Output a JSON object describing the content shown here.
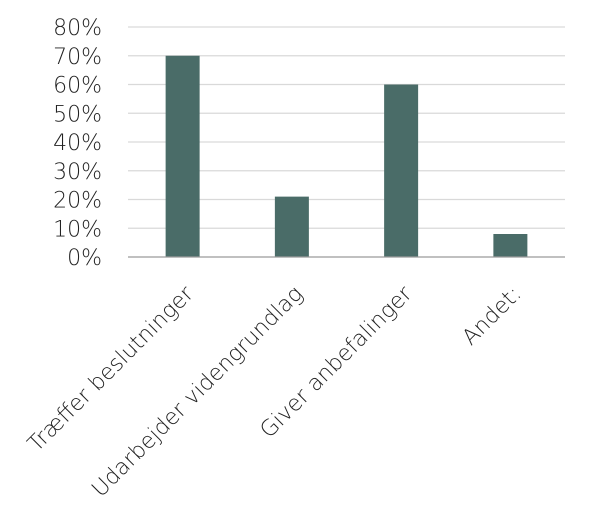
{
  "chart_data": {
    "type": "bar",
    "categories": [
      "Træffer beslutninger",
      "Udarbejder videngrundlag",
      "Giver anbefalinger",
      "Andet:"
    ],
    "values": [
      70,
      21,
      60,
      8
    ],
    "value_unit": "%",
    "ylim": [
      0,
      80
    ],
    "yticks": [
      0,
      10,
      20,
      30,
      40,
      50,
      60,
      70,
      80
    ],
    "ytick_labels": [
      "0%",
      "10%",
      "20%",
      "30%",
      "40%",
      "50%",
      "60%",
      "70%",
      "80%"
    ],
    "title": "",
    "xlabel": "",
    "ylabel": "",
    "grid": true,
    "legend": "none",
    "bar_color": "#4a6c68",
    "grid_color": "#d9d9d9",
    "axis_color": "#9a9a9a"
  }
}
